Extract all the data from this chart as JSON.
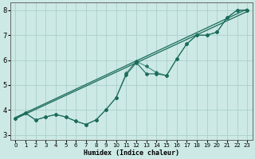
{
  "xlabel": "Humidex (Indice chaleur)",
  "bg_color": "#cce9e5",
  "line_color": "#1a6b5a",
  "grid_color": "#aacfcb",
  "xlim": [
    -0.5,
    23.5
  ],
  "ylim": [
    2.8,
    8.3
  ],
  "xticks": [
    0,
    1,
    2,
    3,
    4,
    5,
    6,
    7,
    8,
    9,
    10,
    11,
    12,
    13,
    14,
    15,
    16,
    17,
    18,
    19,
    20,
    21,
    22,
    23
  ],
  "yticks": [
    3,
    4,
    5,
    6,
    7,
    8
  ],
  "smooth_line1": [
    [
      0,
      23
    ],
    [
      3.65,
      7.95
    ]
  ],
  "smooth_line2": [
    [
      0,
      23
    ],
    [
      3.7,
      8.05
    ]
  ],
  "wavy1_x": [
    0,
    1,
    2,
    3,
    4,
    5,
    6,
    7,
    8,
    9,
    10,
    11,
    12,
    13,
    14,
    15,
    16,
    17,
    18,
    19,
    20,
    21,
    22,
    23
  ],
  "wavy1_y": [
    3.65,
    3.88,
    3.6,
    3.72,
    3.82,
    3.72,
    3.55,
    3.42,
    3.6,
    4.02,
    4.5,
    5.42,
    5.9,
    5.45,
    5.45,
    5.38,
    6.05,
    6.65,
    7.0,
    7.0,
    7.12,
    7.7,
    8.0,
    8.0
  ],
  "wavy2_x": [
    0,
    1,
    2,
    3,
    4,
    5,
    6,
    7,
    8,
    9,
    10,
    11,
    12,
    13,
    14,
    15,
    16,
    17,
    18,
    19,
    20,
    21,
    22,
    23
  ],
  "wavy2_y": [
    3.65,
    3.88,
    3.6,
    3.72,
    3.82,
    3.72,
    3.55,
    3.42,
    3.6,
    4.02,
    4.5,
    5.48,
    5.95,
    5.75,
    5.5,
    5.38,
    6.05,
    6.65,
    7.0,
    7.0,
    7.12,
    7.7,
    8.0,
    8.0
  ]
}
